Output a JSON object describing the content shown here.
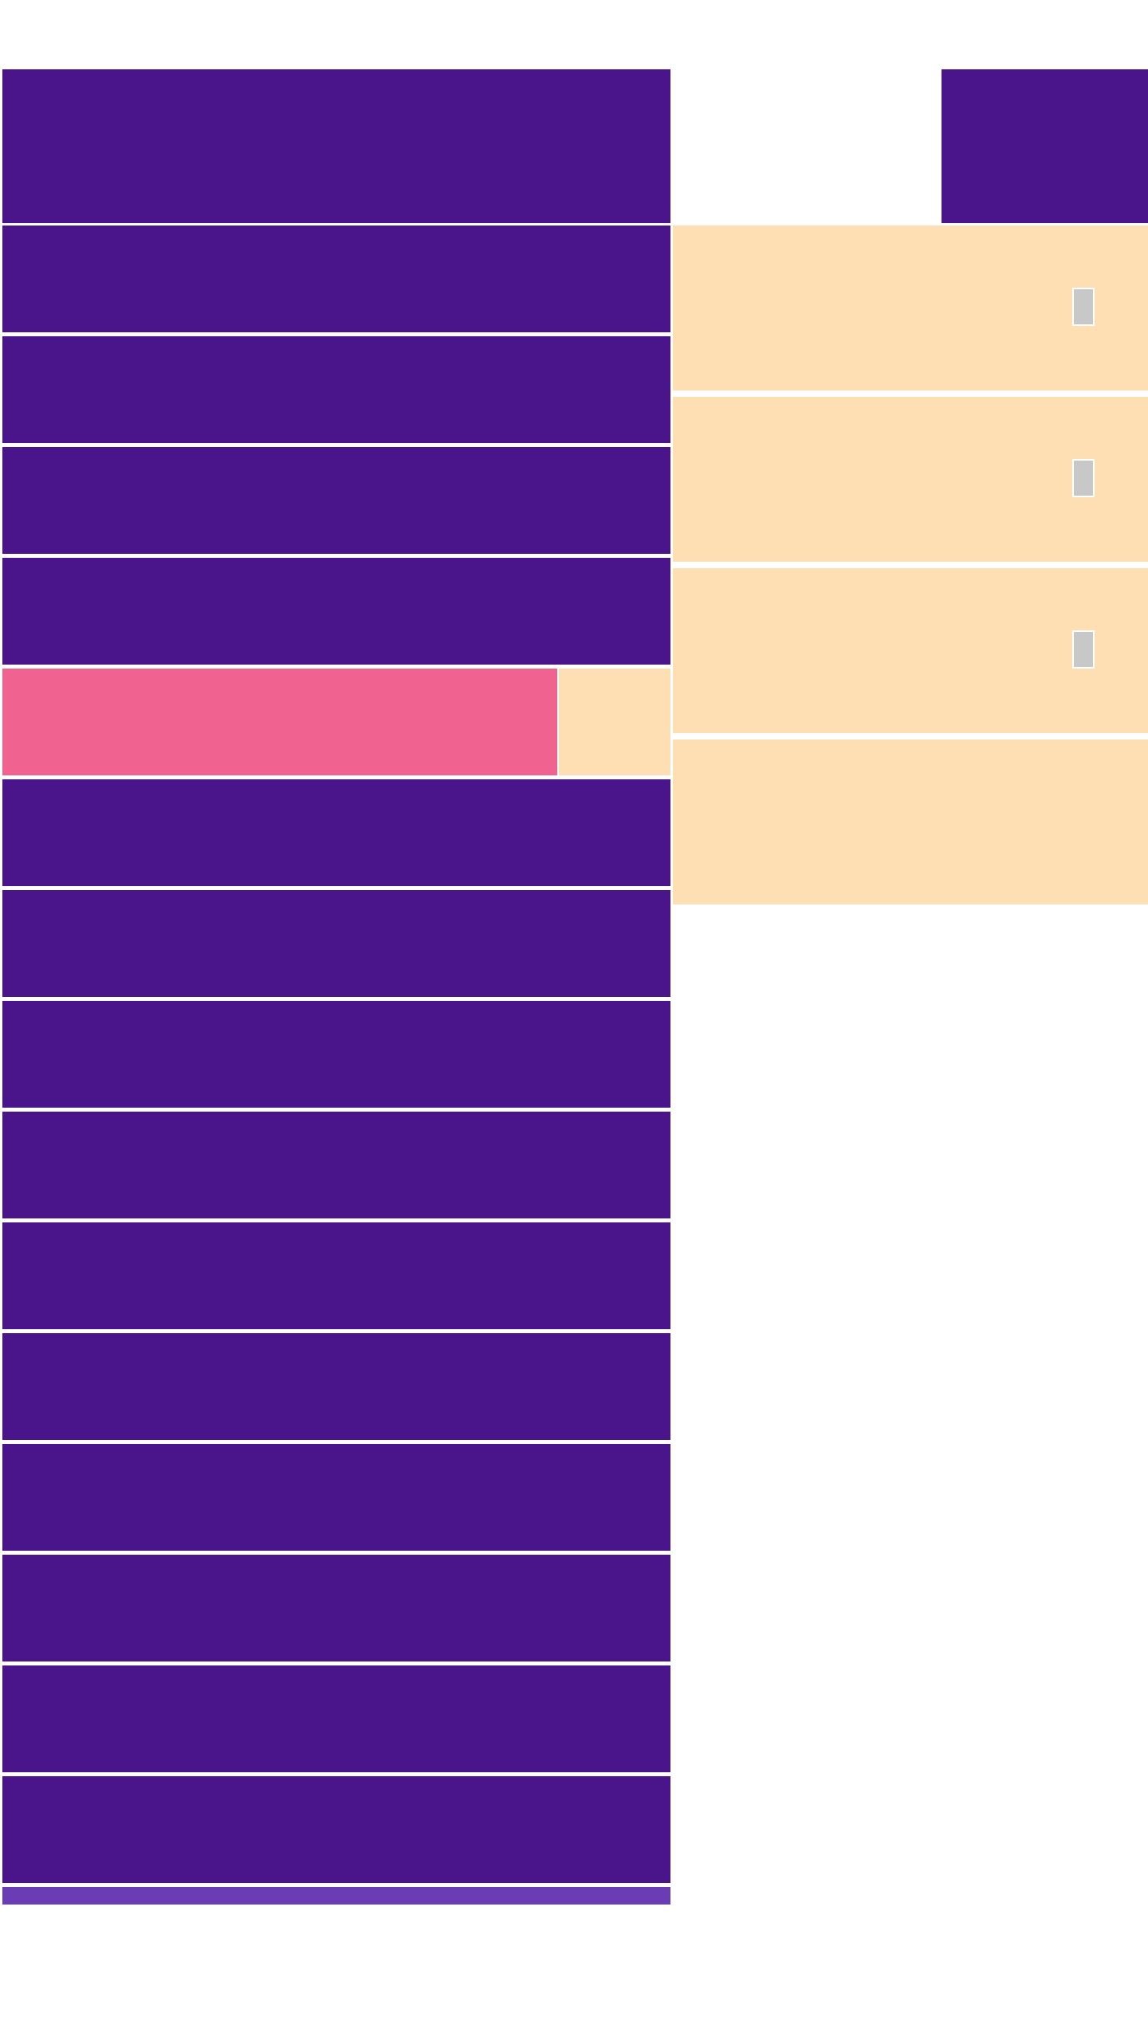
{
  "colors": {
    "primary_block": "#4a158a",
    "accent_pink": "#f06290",
    "card_peach": "#fddfb3",
    "checkbox_gray": "#c8c8c8",
    "strip_purple": "#6a3db4",
    "background": "#ffffff"
  },
  "progress": {
    "fraction": 0.83
  },
  "right_cards": [
    {
      "has_checkbox": true,
      "checked": false
    },
    {
      "has_checkbox": true,
      "checked": false
    },
    {
      "has_checkbox": true,
      "checked": false
    },
    {
      "has_checkbox": false
    }
  ]
}
